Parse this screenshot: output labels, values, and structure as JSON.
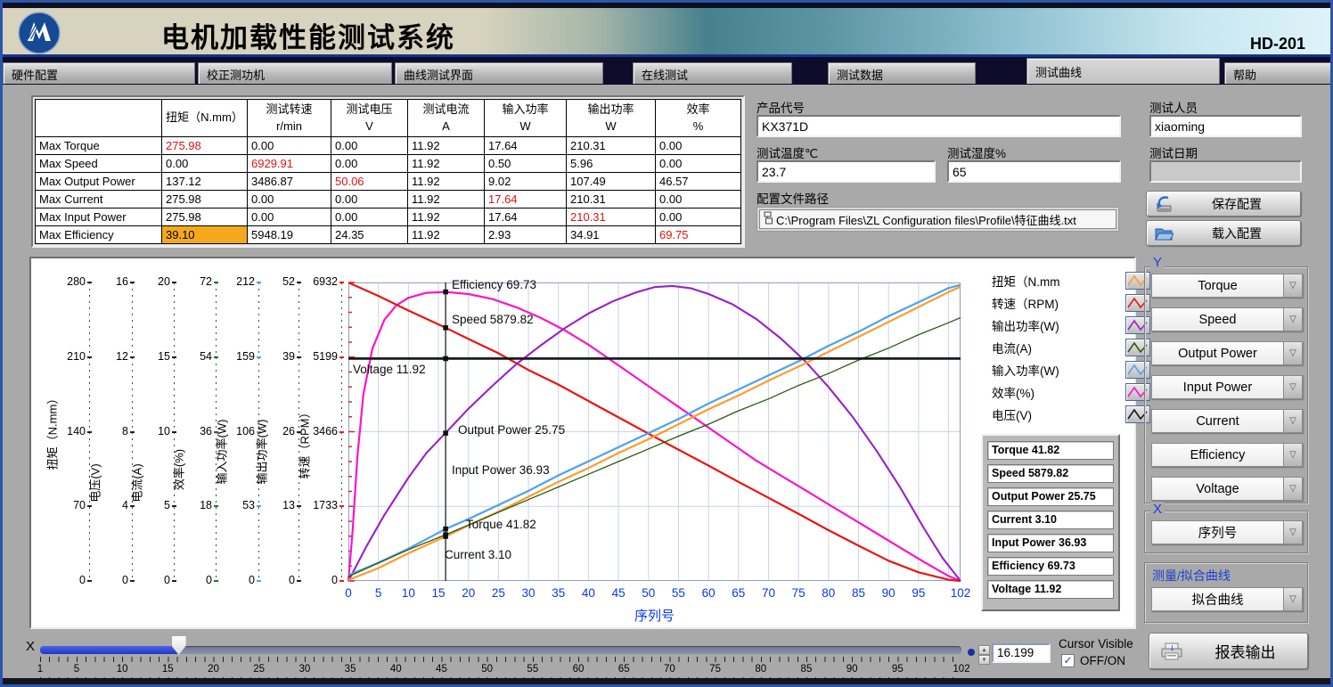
{
  "window": {
    "title": "电机加载性能测试系统",
    "model": "HD-201"
  },
  "tabs": [
    {
      "label": "硬件配置",
      "active": false
    },
    {
      "label": "校正测功机",
      "active": false
    },
    {
      "label": "曲线测试界面",
      "active": false
    },
    {
      "label": "在线测试",
      "active": false
    },
    {
      "label": "测试数据",
      "active": false
    },
    {
      "label": "测试曲线",
      "active": true
    },
    {
      "label": "帮助",
      "active": false
    }
  ],
  "summary_table": {
    "headers": [
      {
        "l1": "",
        "l2": ""
      },
      {
        "l1": "扭矩（N.mm）",
        "l2": ""
      },
      {
        "l1": "测试转速",
        "l2": "r/min"
      },
      {
        "l1": "测试电压",
        "l2": "V"
      },
      {
        "l1": "测试电流",
        "l2": "A"
      },
      {
        "l1": "输入功率",
        "l2": "W"
      },
      {
        "l1": "输出功率",
        "l2": "W"
      },
      {
        "l1": "效率",
        "l2": "%"
      }
    ],
    "rows": [
      {
        "label": "Max Torque",
        "values": [
          "275.98",
          "0.00",
          "0.00",
          "11.92",
          "17.64",
          "210.31",
          "0.00"
        ],
        "red_col": 0,
        "highlight_col": -1
      },
      {
        "label": "Max Speed",
        "values": [
          "0.00",
          "6929.91",
          "0.00",
          "11.92",
          "0.50",
          "5.96",
          "0.00"
        ],
        "red_col": 1,
        "highlight_col": -1
      },
      {
        "label": "Max Output Power",
        "values": [
          "137.12",
          "3486.87",
          "50.06",
          "11.92",
          "9.02",
          "107.49",
          "46.57"
        ],
        "red_col": 2,
        "highlight_col": -1
      },
      {
        "label": "Max Current",
        "values": [
          "275.98",
          "0.00",
          "0.00",
          "11.92",
          "17.64",
          "210.31",
          "0.00"
        ],
        "red_col": 4,
        "highlight_col": -1
      },
      {
        "label": "Max Input Power",
        "values": [
          "275.98",
          "0.00",
          "0.00",
          "11.92",
          "17.64",
          "210.31",
          "0.00"
        ],
        "red_col": 5,
        "highlight_col": -1
      },
      {
        "label": "Max Efficiency",
        "values": [
          "39.10",
          "5948.19",
          "24.35",
          "11.92",
          "2.93",
          "34.91",
          "69.75"
        ],
        "red_col": 6,
        "highlight_col": 0
      }
    ]
  },
  "config": {
    "product_label": "产品代号",
    "product_value": "KX371D",
    "temp_label": "测试温度℃",
    "temp_value": "23.7",
    "humidity_label": "测试湿度%",
    "humidity_value": "65",
    "path_label": "配置文件路径",
    "path_value": "C:\\Program Files\\ZL Configuration files\\Profile\\特征曲线.txt",
    "tester_label": "测试人员",
    "tester_value": "xiaoming",
    "date_label": "测试日期",
    "date_value": "",
    "save_button": "保存配置",
    "load_button": "载入配置"
  },
  "chart": {
    "y_axes": [
      {
        "name": "扭矩（N.mm）",
        "ticks": [
          "280",
          "210",
          "140",
          "70",
          "0"
        ],
        "tick_color": "#222222"
      },
      {
        "name": "电压(V)",
        "ticks": [
          "16",
          "12",
          "8",
          "4",
          "0"
        ],
        "tick_color": "#222222"
      },
      {
        "name": "电流(A)",
        "ticks": [
          "20",
          "15",
          "10",
          "5",
          "0"
        ],
        "tick_color": "#222222"
      },
      {
        "name": "效率(%)",
        "ticks": [
          "72",
          "54",
          "36",
          "18",
          "0"
        ],
        "tick_color": "#1a7a1a"
      },
      {
        "name": "输入功率(W)",
        "ticks": [
          "212",
          "159",
          "106",
          "53",
          "0"
        ],
        "tick_color": "#4da2f0"
      },
      {
        "name": "输出功率(W)",
        "ticks": [
          "52",
          "39",
          "26",
          "13",
          "0"
        ],
        "tick_color": "#222222"
      },
      {
        "name": "转速（RPM）",
        "ticks": [
          "6932",
          "5199",
          "3466",
          "1733",
          "0"
        ],
        "tick_color": "#e02020"
      }
    ],
    "x_axis": {
      "ticks": [
        "0",
        "5",
        "10",
        "15",
        "20",
        "25",
        "30",
        "35",
        "40",
        "45",
        "50",
        "55",
        "60",
        "65",
        "70",
        "75",
        "80",
        "85",
        "90",
        "95",
        "102"
      ],
      "label": "序列号"
    },
    "legend": [
      {
        "label": "扭矩（N.mm",
        "color": "#ff9b2c"
      },
      {
        "label": "转速（RPM)",
        "color": "#e81510"
      },
      {
        "label": "输出功率(W)",
        "color": "#9a1fc8"
      },
      {
        "label": "电流(A)",
        "color": "#2d5a10"
      },
      {
        "label": "输入功率(W)",
        "color": "#4da2f0"
      },
      {
        "label": "效率(%)",
        "color": "#f715cd"
      },
      {
        "label": "电压(V)",
        "color": "#141414"
      }
    ],
    "value_boxes": [
      "Torque 41.82",
      "Speed 5879.82",
      "Output Power 25.75",
      "Current 3.10",
      "Input Power 36.93",
      "Efficiency 69.73",
      "Voltage 11.92"
    ],
    "cursor_labels": [
      "Efficiency 69.73",
      "Speed 5879.82",
      "Voltage 11.92",
      "Output Power 25.75",
      "Input Power 36.93",
      "Torque 41.82",
      "Current 3.10"
    ]
  },
  "chart_data": {
    "type": "line",
    "xlabel": "序列号",
    "x_range": [
      0,
      102
    ],
    "grid": true,
    "series": [
      {
        "name": "Efficiency",
        "color": "#f715cd",
        "width": 2.2,
        "axis_max": 72,
        "points": [
          [
            0,
            0
          ],
          [
            0.7,
            12
          ],
          [
            1.5,
            30
          ],
          [
            2.5,
            45
          ],
          [
            4,
            56
          ],
          [
            6,
            63
          ],
          [
            8,
            66.5
          ],
          [
            10,
            68.3
          ],
          [
            13,
            69.5
          ],
          [
            16.2,
            69.73
          ],
          [
            20,
            69.2
          ],
          [
            24,
            68
          ],
          [
            28,
            66
          ],
          [
            32,
            63.5
          ],
          [
            36,
            60.5
          ],
          [
            40,
            57
          ],
          [
            44,
            53
          ],
          [
            48,
            49
          ],
          [
            52,
            45
          ],
          [
            56,
            41
          ],
          [
            60,
            37
          ],
          [
            64,
            33
          ],
          [
            68,
            29
          ],
          [
            72,
            25.5
          ],
          [
            76,
            22
          ],
          [
            80,
            18.5
          ],
          [
            84,
            15
          ],
          [
            88,
            11.5
          ],
          [
            92,
            8
          ],
          [
            96,
            4.5
          ],
          [
            100,
            1.2
          ],
          [
            102,
            0
          ]
        ]
      },
      {
        "name": "Speed",
        "color": "#e81510",
        "width": 2.2,
        "axis_max": 6932,
        "points": [
          [
            0,
            6930
          ],
          [
            5,
            6620
          ],
          [
            10,
            6280
          ],
          [
            16.2,
            5880
          ],
          [
            20,
            5620
          ],
          [
            25,
            5290
          ],
          [
            30,
            4900
          ],
          [
            35,
            4560
          ],
          [
            40,
            4180
          ],
          [
            45,
            3800
          ],
          [
            50,
            3420
          ],
          [
            55,
            3050
          ],
          [
            60,
            2680
          ],
          [
            65,
            2300
          ],
          [
            70,
            1930
          ],
          [
            75,
            1560
          ],
          [
            80,
            1180
          ],
          [
            85,
            820
          ],
          [
            90,
            470
          ],
          [
            95,
            200
          ],
          [
            100,
            30
          ],
          [
            102,
            0
          ]
        ]
      },
      {
        "name": "Output Power",
        "color": "#9a1fc8",
        "width": 2.1,
        "axis_max": 52,
        "points": [
          [
            0,
            0
          ],
          [
            3,
            6
          ],
          [
            6,
            11.5
          ],
          [
            10,
            18
          ],
          [
            13,
            22.3
          ],
          [
            16.2,
            25.8
          ],
          [
            20,
            30
          ],
          [
            24,
            34
          ],
          [
            28,
            37.8
          ],
          [
            32,
            41
          ],
          [
            36,
            44
          ],
          [
            40,
            46.6
          ],
          [
            44,
            48.7
          ],
          [
            48,
            50.3
          ],
          [
            51,
            51.2
          ],
          [
            54,
            51.4
          ],
          [
            57,
            51
          ],
          [
            60,
            50
          ],
          [
            64,
            48.2
          ],
          [
            68,
            45.6
          ],
          [
            72,
            42.3
          ],
          [
            76,
            38.4
          ],
          [
            80,
            33.8
          ],
          [
            84,
            28.6
          ],
          [
            88,
            22.7
          ],
          [
            92,
            16.2
          ],
          [
            96,
            9
          ],
          [
            99,
            4
          ],
          [
            102,
            0
          ]
        ]
      },
      {
        "name": "Input Power",
        "color": "#4da2f0",
        "width": 2.2,
        "axis_max": 212,
        "points": [
          [
            0,
            4
          ],
          [
            5,
            13
          ],
          [
            10,
            23
          ],
          [
            16.2,
            36.9
          ],
          [
            20,
            44
          ],
          [
            25,
            54
          ],
          [
            30,
            64
          ],
          [
            35,
            75
          ],
          [
            40,
            85
          ],
          [
            45,
            95
          ],
          [
            50,
            105
          ],
          [
            55,
            115
          ],
          [
            60,
            126
          ],
          [
            65,
            136
          ],
          [
            70,
            146
          ],
          [
            75,
            156
          ],
          [
            80,
            167
          ],
          [
            85,
            177
          ],
          [
            90,
            188
          ],
          [
            95,
            198
          ],
          [
            100,
            208
          ],
          [
            102,
            210.3
          ]
        ]
      },
      {
        "name": "Torque",
        "color": "#ff9b2c",
        "width": 2.2,
        "axis_max": 280,
        "points": [
          [
            0,
            1
          ],
          [
            5,
            12
          ],
          [
            10,
            26
          ],
          [
            16.2,
            41.8
          ],
          [
            20,
            52
          ],
          [
            25,
            65
          ],
          [
            30,
            79
          ],
          [
            35,
            93
          ],
          [
            40,
            106
          ],
          [
            45,
            120
          ],
          [
            50,
            133
          ],
          [
            55,
            147
          ],
          [
            60,
            161
          ],
          [
            65,
            174
          ],
          [
            70,
            188
          ],
          [
            75,
            201
          ],
          [
            80,
            215
          ],
          [
            85,
            229
          ],
          [
            90,
            243
          ],
          [
            95,
            257
          ],
          [
            100,
            271
          ],
          [
            102,
            276
          ]
        ]
      },
      {
        "name": "Current",
        "color": "#2d5a10",
        "width": 1.3,
        "axis_max": 20,
        "points": [
          [
            0,
            0.3
          ],
          [
            5,
            1.2
          ],
          [
            10,
            2.1
          ],
          [
            16.2,
            3.1
          ],
          [
            20,
            3.75
          ],
          [
            25,
            4.6
          ],
          [
            30,
            5.45
          ],
          [
            35,
            6.3
          ],
          [
            40,
            7.15
          ],
          [
            45,
            8
          ],
          [
            50,
            8.85
          ],
          [
            55,
            9.7
          ],
          [
            60,
            10.5
          ],
          [
            65,
            11.4
          ],
          [
            70,
            12.2
          ],
          [
            75,
            13.1
          ],
          [
            80,
            13.9
          ],
          [
            85,
            14.8
          ],
          [
            90,
            15.6
          ],
          [
            95,
            16.5
          ],
          [
            100,
            17.3
          ],
          [
            102,
            17.64
          ]
        ]
      },
      {
        "name": "Voltage",
        "color": "#141414",
        "width": 2.6,
        "axis_max": 16,
        "points": [
          [
            0,
            11.92
          ],
          [
            102,
            11.92
          ]
        ]
      }
    ],
    "cursor": {
      "x": 16.199,
      "markers": [
        {
          "name": "Efficiency",
          "value": 69.73,
          "axis_max": 72
        },
        {
          "name": "Speed",
          "value": 5879.82,
          "axis_max": 6932
        },
        {
          "name": "Voltage",
          "value": 11.92,
          "axis_max": 16
        },
        {
          "name": "Output Power",
          "value": 25.75,
          "axis_max": 52
        },
        {
          "name": "Input Power",
          "value": 36.93,
          "axis_max": 212
        },
        {
          "name": "Torque",
          "value": 41.82,
          "axis_max": 280
        },
        {
          "name": "Current",
          "value": 3.1,
          "axis_max": 20
        }
      ]
    }
  },
  "controls": {
    "y_group_label": "Y",
    "y_selectors": [
      "Torque",
      "Speed",
      "Output Power",
      "Input Power",
      "Current",
      "Efficiency",
      "Voltage"
    ],
    "x_group_label": "X",
    "x_selector": "序列号",
    "fit_group_label": "测量/拟合曲线",
    "fit_selector": "拟合曲线",
    "report_button": "报表输出",
    "slider_label": "X",
    "slider_value": "16.199",
    "slider_min": 1,
    "slider_max": 102,
    "slider_ticks": [
      "1",
      "5",
      "10",
      "15",
      "20",
      "25",
      "30",
      "35",
      "40",
      "45",
      "50",
      "55",
      "60",
      "65",
      "70",
      "75",
      "80",
      "85",
      "90",
      "95",
      "102"
    ],
    "cursor_visible_label": "Cursor Visible",
    "onoff_label": "OFF/ON"
  }
}
